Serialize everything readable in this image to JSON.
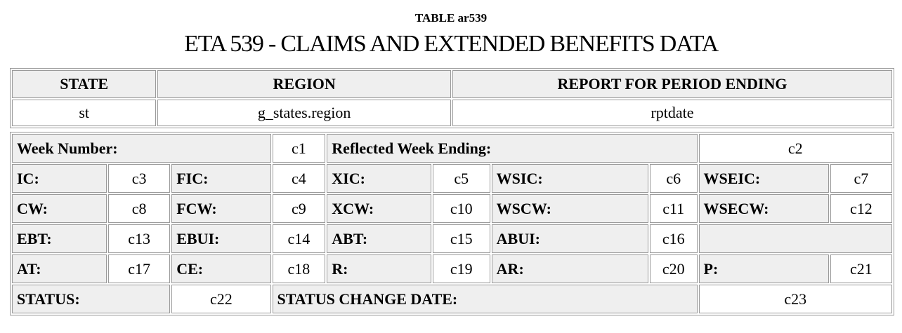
{
  "caption": "TABLE ar539",
  "title": "ETA 539 - CLAIMS AND EXTENDED BENEFITS DATA",
  "header": {
    "state_label": "STATE",
    "region_label": "REGION",
    "period_label": "REPORT FOR PERIOD ENDING",
    "state_value": "st",
    "region_value": "g_states.region",
    "period_value": "rptdate"
  },
  "rows": {
    "week_number_label": "Week Number:",
    "c1": "c1",
    "reflected_week_label": "Reflected Week Ending:",
    "c2": "c2",
    "ic_label": "IC:",
    "c3": "c3",
    "fic_label": "FIC:",
    "c4": "c4",
    "xic_label": "XIC:",
    "c5": "c5",
    "wsic_label": "WSIC:",
    "c6": "c6",
    "wseic_label": "WSEIC:",
    "c7": "c7",
    "cw_label": "CW:",
    "c8": "c8",
    "fcw_label": "FCW:",
    "c9": "c9",
    "xcw_label": "XCW:",
    "c10": "c10",
    "wscw_label": "WSCW:",
    "c11": "c11",
    "wsecw_label": "WSECW:",
    "c12": "c12",
    "ebt_label": "EBT:",
    "c13": "c13",
    "ebui_label": "EBUI:",
    "c14": "c14",
    "abt_label": "ABT:",
    "c15": "c15",
    "abui_label": "ABUI:",
    "c16": "c16",
    "at_label": "AT:",
    "c17": "c17",
    "ce_label": "CE:",
    "c18": "c18",
    "r_label": "R:",
    "c19": "c19",
    "ar_label": "AR:",
    "c20": "c20",
    "p_label": "P:",
    "c21": "c21",
    "status_label": "STATUS:",
    "c22": "c22",
    "status_change_label": "STATUS CHANGE DATE:",
    "c23": "c23"
  }
}
